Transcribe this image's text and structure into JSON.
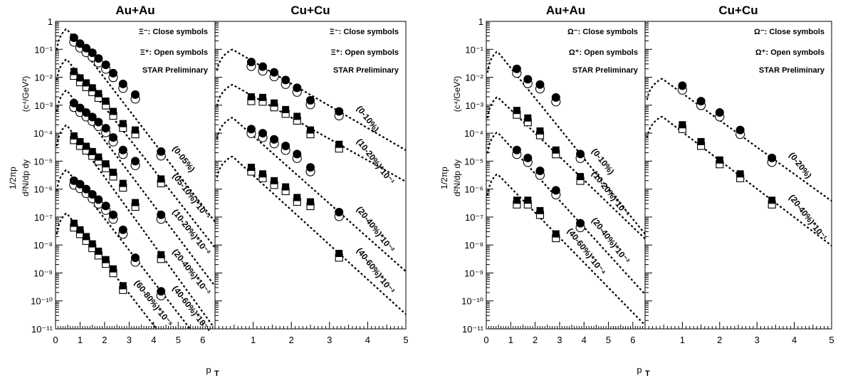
{
  "chart_data": [
    {
      "type": "scatter",
      "title": "Au+Au",
      "xlabel": "p_T",
      "ylabel": "(1/2πp_T) d²N/dp_T dy (c⁴/GeV²)",
      "xlim": [
        0,
        6.5
      ],
      "ylim": [
        1e-11,
        1
      ],
      "yscale": "log",
      "xticks": [
        "0",
        "1",
        "2",
        "3",
        "4",
        "5",
        "6"
      ],
      "legend": [
        "Ξ⁻: Close symbols",
        "Ξ⁺: Open symbols",
        "STAR Preliminary"
      ],
      "series": [
        {
          "name": "(0-05%)",
          "marker": "circle",
          "x": [
            0.75,
            1.0,
            1.25,
            1.5,
            1.75,
            2.05,
            2.35,
            2.75,
            3.25,
            4.3
          ],
          "y": [
            0.26,
            0.16,
            0.11,
            0.075,
            0.047,
            0.028,
            0.014,
            0.0058,
            0.0024,
            2.2e-05
          ],
          "curve_peak": 0.55
        },
        {
          "name": "(05-10%)*10⁻¹",
          "marker": "square",
          "x": [
            0.75,
            1.0,
            1.25,
            1.5,
            1.75,
            2.05,
            2.35,
            2.75,
            3.25,
            4.3
          ],
          "y": [
            0.016,
            0.0095,
            0.0063,
            0.0042,
            0.0026,
            0.0014,
            0.0006,
            0.00022,
            0.00013,
            2.3e-06
          ],
          "curve_peak": 0.045
        },
        {
          "name": "(10-20%)*10⁻²",
          "marker": "circle",
          "x": [
            0.75,
            1.0,
            1.25,
            1.5,
            1.75,
            2.05,
            2.35,
            2.75,
            3.25,
            4.3
          ],
          "y": [
            0.0012,
            0.0008,
            0.00055,
            0.00038,
            0.00025,
            0.00015,
            7e-05,
            2.5e-05,
            1e-05,
            1.2e-07
          ],
          "curve_peak": 0.0035
        },
        {
          "name": "(20-40%)*10⁻³",
          "marker": "square",
          "x": [
            0.75,
            1.0,
            1.25,
            1.5,
            1.75,
            2.05,
            2.35,
            2.75,
            3.25,
            4.3
          ],
          "y": [
            8e-05,
            5e-05,
            3.4e-05,
            2.2e-05,
            1.4e-05,
            8e-06,
            4e-06,
            1.6e-06,
            3.3e-07,
            4.5e-09
          ],
          "curve_peak": 0.0002
        },
        {
          "name": "(40-60%)*10⁻⁴",
          "marker": "circle",
          "x": [
            0.75,
            1.0,
            1.25,
            1.5,
            1.75,
            2.05,
            2.35,
            2.75,
            3.25,
            4.3
          ],
          "y": [
            2e-06,
            1.5e-06,
            1e-06,
            6.5e-07,
            4.2e-07,
            2.5e-07,
            1.2e-07,
            3.5e-08,
            3.5e-09,
            2.2e-10
          ],
          "curve_peak": 5e-06
        },
        {
          "name": "(60-80%)*10⁻⁵",
          "marker": "square",
          "x": [
            0.75,
            1.0,
            1.25,
            1.5,
            1.75,
            2.05,
            2.35,
            2.75
          ],
          "y": [
            6e-08,
            3.5e-08,
            2e-08,
            1.1e-08,
            6e-09,
            3e-09,
            1.4e-09,
            3.5e-10
          ],
          "curve_peak": 1.4e-07
        }
      ]
    },
    {
      "type": "scatter",
      "title": "Cu+Cu",
      "xlabel": "p_T",
      "xlim": [
        0,
        5
      ],
      "ylim": [
        1e-11,
        1
      ],
      "yscale": "log",
      "xticks": [
        "1",
        "2",
        "3",
        "4",
        "5"
      ],
      "legend": [
        "Ξ⁻: Close symbols",
        "Ξ⁺: Open symbols",
        "STAR Preliminary"
      ],
      "series": [
        {
          "name": "(0-10%)",
          "marker": "circle",
          "x": [
            0.95,
            1.25,
            1.55,
            1.85,
            2.15,
            2.5,
            3.25
          ],
          "y": [
            0.035,
            0.024,
            0.015,
            0.008,
            0.0042,
            0.0015,
            0.0006
          ],
          "curve_peak": 0.1
        },
        {
          "name": "(10-20%)*10⁻¹",
          "marker": "square",
          "x": [
            0.95,
            1.25,
            1.55,
            1.85,
            2.15,
            2.5,
            3.25
          ],
          "y": [
            0.002,
            0.0019,
            0.0012,
            0.0007,
            0.0004,
            0.00013,
            4e-05
          ],
          "curve_peak": 0.0055
        },
        {
          "name": "(20-40%)*10⁻²",
          "marker": "circle",
          "x": [
            0.95,
            1.25,
            1.55,
            1.85,
            2.15,
            2.5,
            3.25
          ],
          "y": [
            0.00014,
            0.0001,
            6e-05,
            3.5e-05,
            1.8e-05,
            6e-06,
            1.5e-07
          ],
          "curve_peak": 0.00037
        },
        {
          "name": "(40-60%)*10⁻³",
          "marker": "square",
          "x": [
            0.95,
            1.25,
            1.55,
            1.85,
            2.15,
            2.5,
            3.25
          ],
          "y": [
            6e-06,
            3.5e-06,
            2e-06,
            1.2e-06,
            5e-07,
            3.5e-07,
            5e-09
          ],
          "curve_peak": 1.5e-05
        }
      ]
    },
    {
      "type": "scatter",
      "title": "Au+Au",
      "xlabel": "p_T",
      "ylabel": "(1/2πp_T) d²N/dp_T dy (c⁴/GeV²)",
      "xlim": [
        0,
        6.5
      ],
      "ylim": [
        1e-11,
        1
      ],
      "yscale": "log",
      "xticks": [
        "0",
        "1",
        "2",
        "3",
        "4",
        "5",
        "6"
      ],
      "legend": [
        "Ω⁻: Close symbols",
        "Ω⁺: Open symbols",
        "STAR Preliminary"
      ],
      "series": [
        {
          "name": "(0-10%)",
          "marker": "circle",
          "x": [
            1.25,
            1.7,
            2.2,
            2.85,
            3.85
          ],
          "y": [
            0.02,
            0.0085,
            0.0055,
            0.0019,
            1.8e-05
          ],
          "curve_peak": 0.085
        },
        {
          "name": "(10-20%)*10⁻¹",
          "marker": "square",
          "x": [
            1.25,
            1.7,
            2.2,
            2.85,
            3.85
          ],
          "y": [
            0.00065,
            0.00035,
            0.00012,
            2.5e-05,
            2.8e-06
          ],
          "curve_peak": 0.002
        },
        {
          "name": "(20-40%)*10⁻³",
          "marker": "circle",
          "x": [
            1.25,
            1.7,
            2.2,
            2.85,
            3.85
          ],
          "y": [
            2.5e-05,
            1.3e-05,
            4.5e-06,
            9e-07,
            6e-08
          ],
          "curve_peak": 0.00011
        },
        {
          "name": "(40-60%)*10⁻⁴",
          "marker": "square",
          "x": [
            1.25,
            1.7,
            2.2,
            2.85
          ],
          "y": [
            4e-07,
            4e-07,
            1.7e-07,
            2.5e-08
          ],
          "curve_peak": 3.5e-06
        }
      ]
    },
    {
      "type": "scatter",
      "title": "Cu+Cu",
      "xlabel": "p_T",
      "xlim": [
        0,
        5
      ],
      "ylim": [
        1e-11,
        1
      ],
      "yscale": "log",
      "xticks": [
        "1",
        "2",
        "3",
        "4",
        "5"
      ],
      "legend": [
        "Ω⁻: Close symbols",
        "Ω⁺: Open symbols",
        "STAR Preliminary"
      ],
      "series": [
        {
          "name": "(0-20%)",
          "marker": "circle",
          "x": [
            1.0,
            1.5,
            2.0,
            2.55,
            3.4
          ],
          "y": [
            0.005,
            0.0014,
            0.00055,
            0.00013,
            1.3e-05
          ],
          "curve_peak": 0.009
        },
        {
          "name": "(20-40%)*10⁻¹",
          "marker": "square",
          "x": [
            1.0,
            1.5,
            2.0,
            2.55,
            3.4
          ],
          "y": [
            0.0002,
            5e-05,
            1.1e-05,
            3.5e-06,
            4e-07
          ],
          "curve_peak": 0.0004
        }
      ]
    }
  ],
  "y_tick_labels": [
    "1",
    "10⁻¹",
    "10⁻²",
    "10⁻³",
    "10⁻⁴",
    "10⁻⁵",
    "10⁻⁶",
    "10⁻⁷",
    "10⁻⁸",
    "10⁻⁹",
    "10⁻¹⁰",
    "10⁻¹¹"
  ],
  "y_axis_unit": "(c⁴/GeV²)",
  "x_axis_label": "p",
  "x_axis_subscript": "T"
}
